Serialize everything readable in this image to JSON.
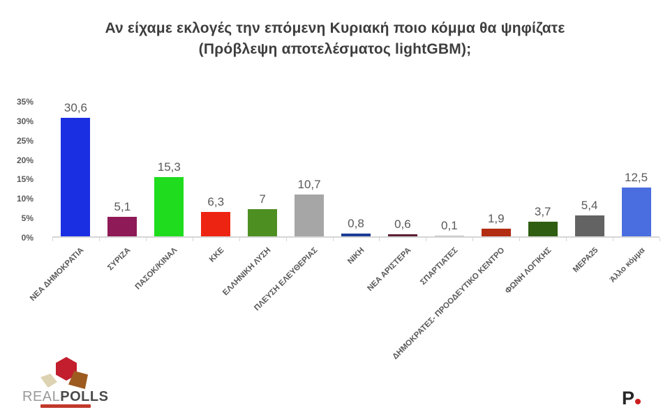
{
  "title": {
    "line1": "Αν είχαμε εκλογές την επόμενη Κυριακή ποιο κόμμα θα ψηφίζατε",
    "line2": "(Πρόβλεψη αποτελέσματος lightGBM);"
  },
  "chart_data": {
    "type": "bar",
    "title": "Αν είχαμε εκλογές την επόμενη Κυριακή ποιο κόμμα θα ψηφίζατε (Πρόβλεψη αποτελέσματος lightGBM);",
    "categories": [
      "ΝΕΑ ΔΗΜΟΚΡΑΤΙΑ",
      "ΣΥΡΙΖΑ",
      "ΠΑΣΟΚ/ΚΙΝΑΛ",
      "ΚΚΕ",
      "ΕΛΛΗΝΙΚΗ ΛΥΣΗ",
      "ΠΛΕΥΣΗ ΕΛΕΥΘΕΡΙΑΣ",
      "ΝΙΚΗ",
      "ΝΕΑ ΑΡΙΣΤΕΡΑ",
      "ΣΠΑΡΤΙΑΤΕΣ",
      "ΔΗΜΟΚΡΑΤΕΣ- ΠΡΟΟΔΕΥΤΙΚΟ ΚΕΝΤΡΟ",
      "ΦΩΝΗ ΛΟΓΙΚΗΣ",
      "ΜΕΡΑ25",
      "Άλλο κόμμα"
    ],
    "values": [
      30.6,
      5.1,
      15.3,
      6.3,
      7,
      10.7,
      0.8,
      0.6,
      0.1,
      1.9,
      3.7,
      5.4,
      12.5
    ],
    "value_labels": [
      "30,6",
      "5,1",
      "15,3",
      "6,3",
      "7",
      "10,7",
      "0,8",
      "0,6",
      "0,1",
      "1,9",
      "3,7",
      "5,4",
      "12,5"
    ],
    "bar_colors": [
      "#1a2fe2",
      "#8e1a57",
      "#1fdc1f",
      "#ee2412",
      "#4e8f22",
      "#a6a6a6",
      "#1c3c96",
      "#5c1f33",
      "#bfbfbf",
      "#b22d11",
      "#2f5e12",
      "#636363",
      "#4a6ee0"
    ],
    "xlabel": "",
    "ylabel": "",
    "y_ticks": [
      "0%",
      "5%",
      "10%",
      "15%",
      "20%",
      "25%",
      "30%",
      "35%"
    ],
    "ylim": [
      0,
      35
    ],
    "grid": false,
    "legend": false
  },
  "footer": {
    "logo_left": {
      "brand_real": "REAL",
      "brand_polls": "POLLS"
    },
    "logo_right": {
      "letter": "P"
    }
  },
  "colors": {
    "title_text": "#3d3d3d",
    "axis_text": "#595959",
    "value_text": "#595959",
    "baseline": "#d6d6d6",
    "tagline_red": "#c1392b",
    "p_dot_red": "#cc1f1f"
  }
}
